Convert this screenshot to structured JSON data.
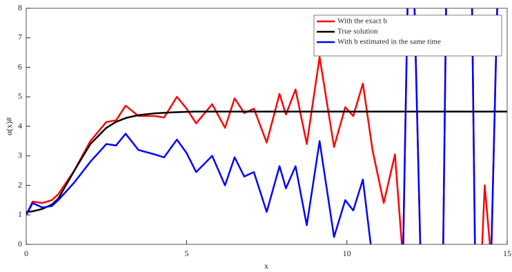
{
  "chart_data": {
    "type": "line",
    "xlabel": "x",
    "ylabel": "α(x)#",
    "x": [
      0,
      0.2,
      0.5,
      0.8,
      1,
      1.5,
      2,
      2.5,
      2.8,
      3.1,
      3.5,
      4,
      4.3,
      4.7,
      5,
      5.3,
      5.8,
      6.2,
      6.5,
      6.8,
      7.1,
      7.5,
      7.9,
      8.1,
      8.4,
      8.75,
      9.15,
      9.6,
      9.95,
      10.2,
      10.5,
      10.8,
      11.15,
      11.5,
      11.75,
      11.9,
      12.1,
      12.3,
      12.5,
      13,
      13.1,
      13.3,
      13.5,
      13.9,
      14,
      14.2,
      14.3,
      14.5,
      14.7,
      14.8,
      15
    ],
    "series": [
      {
        "name": "With the exact b",
        "color": "#ff0000",
        "values": [
          1.0,
          1.45,
          1.4,
          1.5,
          1.7,
          2.5,
          3.5,
          4.15,
          4.2,
          4.7,
          4.35,
          4.35,
          4.3,
          5.0,
          4.6,
          4.1,
          4.75,
          3.95,
          4.95,
          4.45,
          4.6,
          3.45,
          5.1,
          4.4,
          5.25,
          3.4,
          6.35,
          3.3,
          4.65,
          4.35,
          5.45,
          3.2,
          1.4,
          3.05,
          -0.5,
          8.5,
          8.5,
          -0.5,
          -0.5,
          -0.5,
          8.5,
          8.5,
          8.5,
          8.5,
          -0.5,
          -0.5,
          2.0,
          -0.5,
          8.5,
          8.5,
          8.5
        ]
      },
      {
        "name": "True solution",
        "color": "#000000",
        "values": [
          1.1,
          1.12,
          1.2,
          1.35,
          1.55,
          2.5,
          3.4,
          3.95,
          4.15,
          4.28,
          4.38,
          4.44,
          4.46,
          4.48,
          4.49,
          4.5,
          4.5,
          4.5,
          4.5,
          4.5,
          4.5,
          4.5,
          4.5,
          4.5,
          4.5,
          4.5,
          4.5,
          4.5,
          4.5,
          4.5,
          4.5,
          4.5,
          4.5,
          4.5,
          4.5,
          4.5,
          4.5,
          4.5,
          4.5,
          4.5,
          4.5,
          4.5,
          4.5,
          4.5,
          4.5,
          4.5,
          4.5,
          4.5,
          4.5,
          4.5,
          4.5
        ]
      },
      {
        "name": "With b estimated in the same time",
        "color": "#0000ff",
        "values": [
          1.0,
          1.4,
          1.25,
          1.3,
          1.5,
          2.1,
          2.8,
          3.4,
          3.35,
          3.75,
          3.2,
          3.05,
          2.95,
          3.55,
          3.1,
          2.45,
          3.0,
          2.0,
          2.95,
          2.3,
          2.45,
          1.1,
          2.65,
          1.9,
          2.65,
          0.65,
          3.5,
          0.25,
          1.5,
          1.15,
          2.2,
          -0.5,
          -0.5,
          -0.5,
          -0.5,
          8.5,
          8.5,
          -0.5,
          -0.5,
          -0.5,
          8.5,
          8.5,
          8.5,
          8.5,
          -0.5,
          -0.5,
          -0.5,
          -0.5,
          8.5,
          8.5,
          8.5
        ]
      }
    ],
    "xlim": [
      0,
      15
    ],
    "xticks": [
      0,
      5,
      10,
      15
    ],
    "ylim": [
      0,
      8
    ],
    "yticks": [
      0,
      1,
      2,
      3,
      4,
      5,
      6,
      7,
      8
    ],
    "legend": "top-right"
  }
}
